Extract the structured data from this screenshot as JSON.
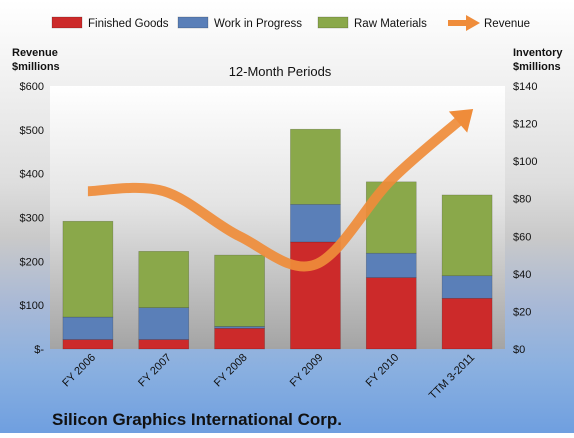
{
  "chart_data": {
    "type": "bar",
    "stacked": true,
    "title": "12-Month Periods",
    "company": "Silicon Graphics International Corp.",
    "left_axis_title": [
      "Revenue",
      "$millions"
    ],
    "right_axis_title": [
      "Inventory",
      "$millions"
    ],
    "categories": [
      "FY 2006",
      "FY 2007",
      "FY 2008",
      "FY 2009",
      "FY 2010",
      "TTM 3-2011"
    ],
    "inventory_series": [
      {
        "name": "Finished Goods",
        "color": "#cc2a2a",
        "values": [
          5,
          5,
          11,
          57,
          38,
          27
        ]
      },
      {
        "name": "Work in Progress",
        "color": "#5a7fb8",
        "values": [
          12,
          17,
          1,
          20,
          13,
          12
        ]
      },
      {
        "name": "Raw Materials",
        "color": "#8aa84a",
        "values": [
          51,
          30,
          38,
          40,
          38,
          43
        ]
      }
    ],
    "revenue_series": {
      "name": "Revenue",
      "color": "#ef8c3a",
      "values": [
        84,
        84,
        60,
        45,
        90,
        125
      ]
    },
    "left_axis": {
      "ylim": [
        0,
        600
      ],
      "ticks": [
        0,
        100,
        200,
        300,
        400,
        500,
        600
      ],
      "tick_labels": [
        "$-",
        "$100",
        "$200",
        "$300",
        "$400",
        "$500",
        "$600"
      ]
    },
    "right_axis": {
      "ylim": [
        0,
        140
      ],
      "ticks": [
        0,
        20,
        40,
        60,
        80,
        100,
        120,
        140
      ],
      "tick_labels": [
        "$0",
        "$20",
        "$40",
        "$60",
        "$80",
        "$100",
        "$120",
        "$140"
      ]
    },
    "legend_position": "top",
    "grid": false
  }
}
